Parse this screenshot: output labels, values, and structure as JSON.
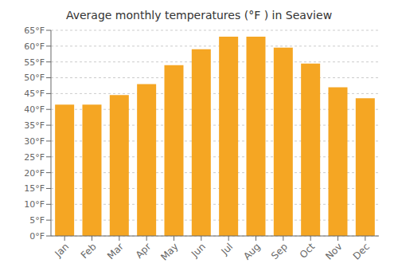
{
  "chart_data": {
    "type": "bar",
    "title": "Average monthly temperatures (°F ) in Seaview",
    "categories": [
      "Jan",
      "Feb",
      "Mar",
      "Apr",
      "May",
      "Jun",
      "Jul",
      "Aug",
      "Sep",
      "Oct",
      "Nov",
      "Dec"
    ],
    "values": [
      41.5,
      41.5,
      44.5,
      48,
      54,
      59,
      63,
      63,
      59.5,
      54.5,
      47,
      43.5
    ],
    "color": "#F5A623",
    "ylim": [
      0,
      65
    ],
    "yticks": [
      {
        "value": 0,
        "label": "0°F"
      },
      {
        "value": 5,
        "label": "5°F"
      },
      {
        "value": 10,
        "label": "10°F"
      },
      {
        "value": 15,
        "label": "15°F"
      },
      {
        "value": 20,
        "label": "20°F"
      },
      {
        "value": 25,
        "label": "25°F"
      },
      {
        "value": 30,
        "label": "30°F"
      },
      {
        "value": 35,
        "label": "35°F"
      },
      {
        "value": 40,
        "label": "40°F"
      },
      {
        "value": 45,
        "label": "45°F"
      },
      {
        "value": 50,
        "label": "50°F"
      },
      {
        "value": 55,
        "label": "55°F"
      },
      {
        "value": 60,
        "label": "60°F"
      },
      {
        "value": 65,
        "label": "65°F"
      }
    ],
    "grid": true
  }
}
